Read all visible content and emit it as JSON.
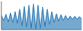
{
  "chart_data": {
    "type": "area",
    "x": [
      0,
      1,
      2,
      3,
      4,
      5,
      6,
      7,
      8,
      9,
      10,
      11,
      12,
      13,
      14,
      15,
      16,
      17,
      18,
      19,
      20,
      21,
      22,
      23,
      24,
      25,
      26,
      27,
      28,
      29,
      30,
      31,
      32,
      33,
      34,
      35
    ],
    "values": [
      55000,
      35000,
      60000,
      30000,
      65000,
      28000,
      70000,
      25000,
      80000,
      15000,
      90000,
      10000,
      95000,
      5000,
      100000,
      3000,
      95000,
      5000,
      88000,
      12000,
      80000,
      20000,
      70000,
      28000,
      62000,
      33000,
      58000,
      36000,
      55000,
      38000,
      53000,
      40000,
      52000,
      41000,
      51000,
      42000
    ],
    "color": "#1a6faf",
    "xlim": [
      0,
      35
    ],
    "ylim": [
      0,
      110000
    ],
    "tick_labels": false
  }
}
